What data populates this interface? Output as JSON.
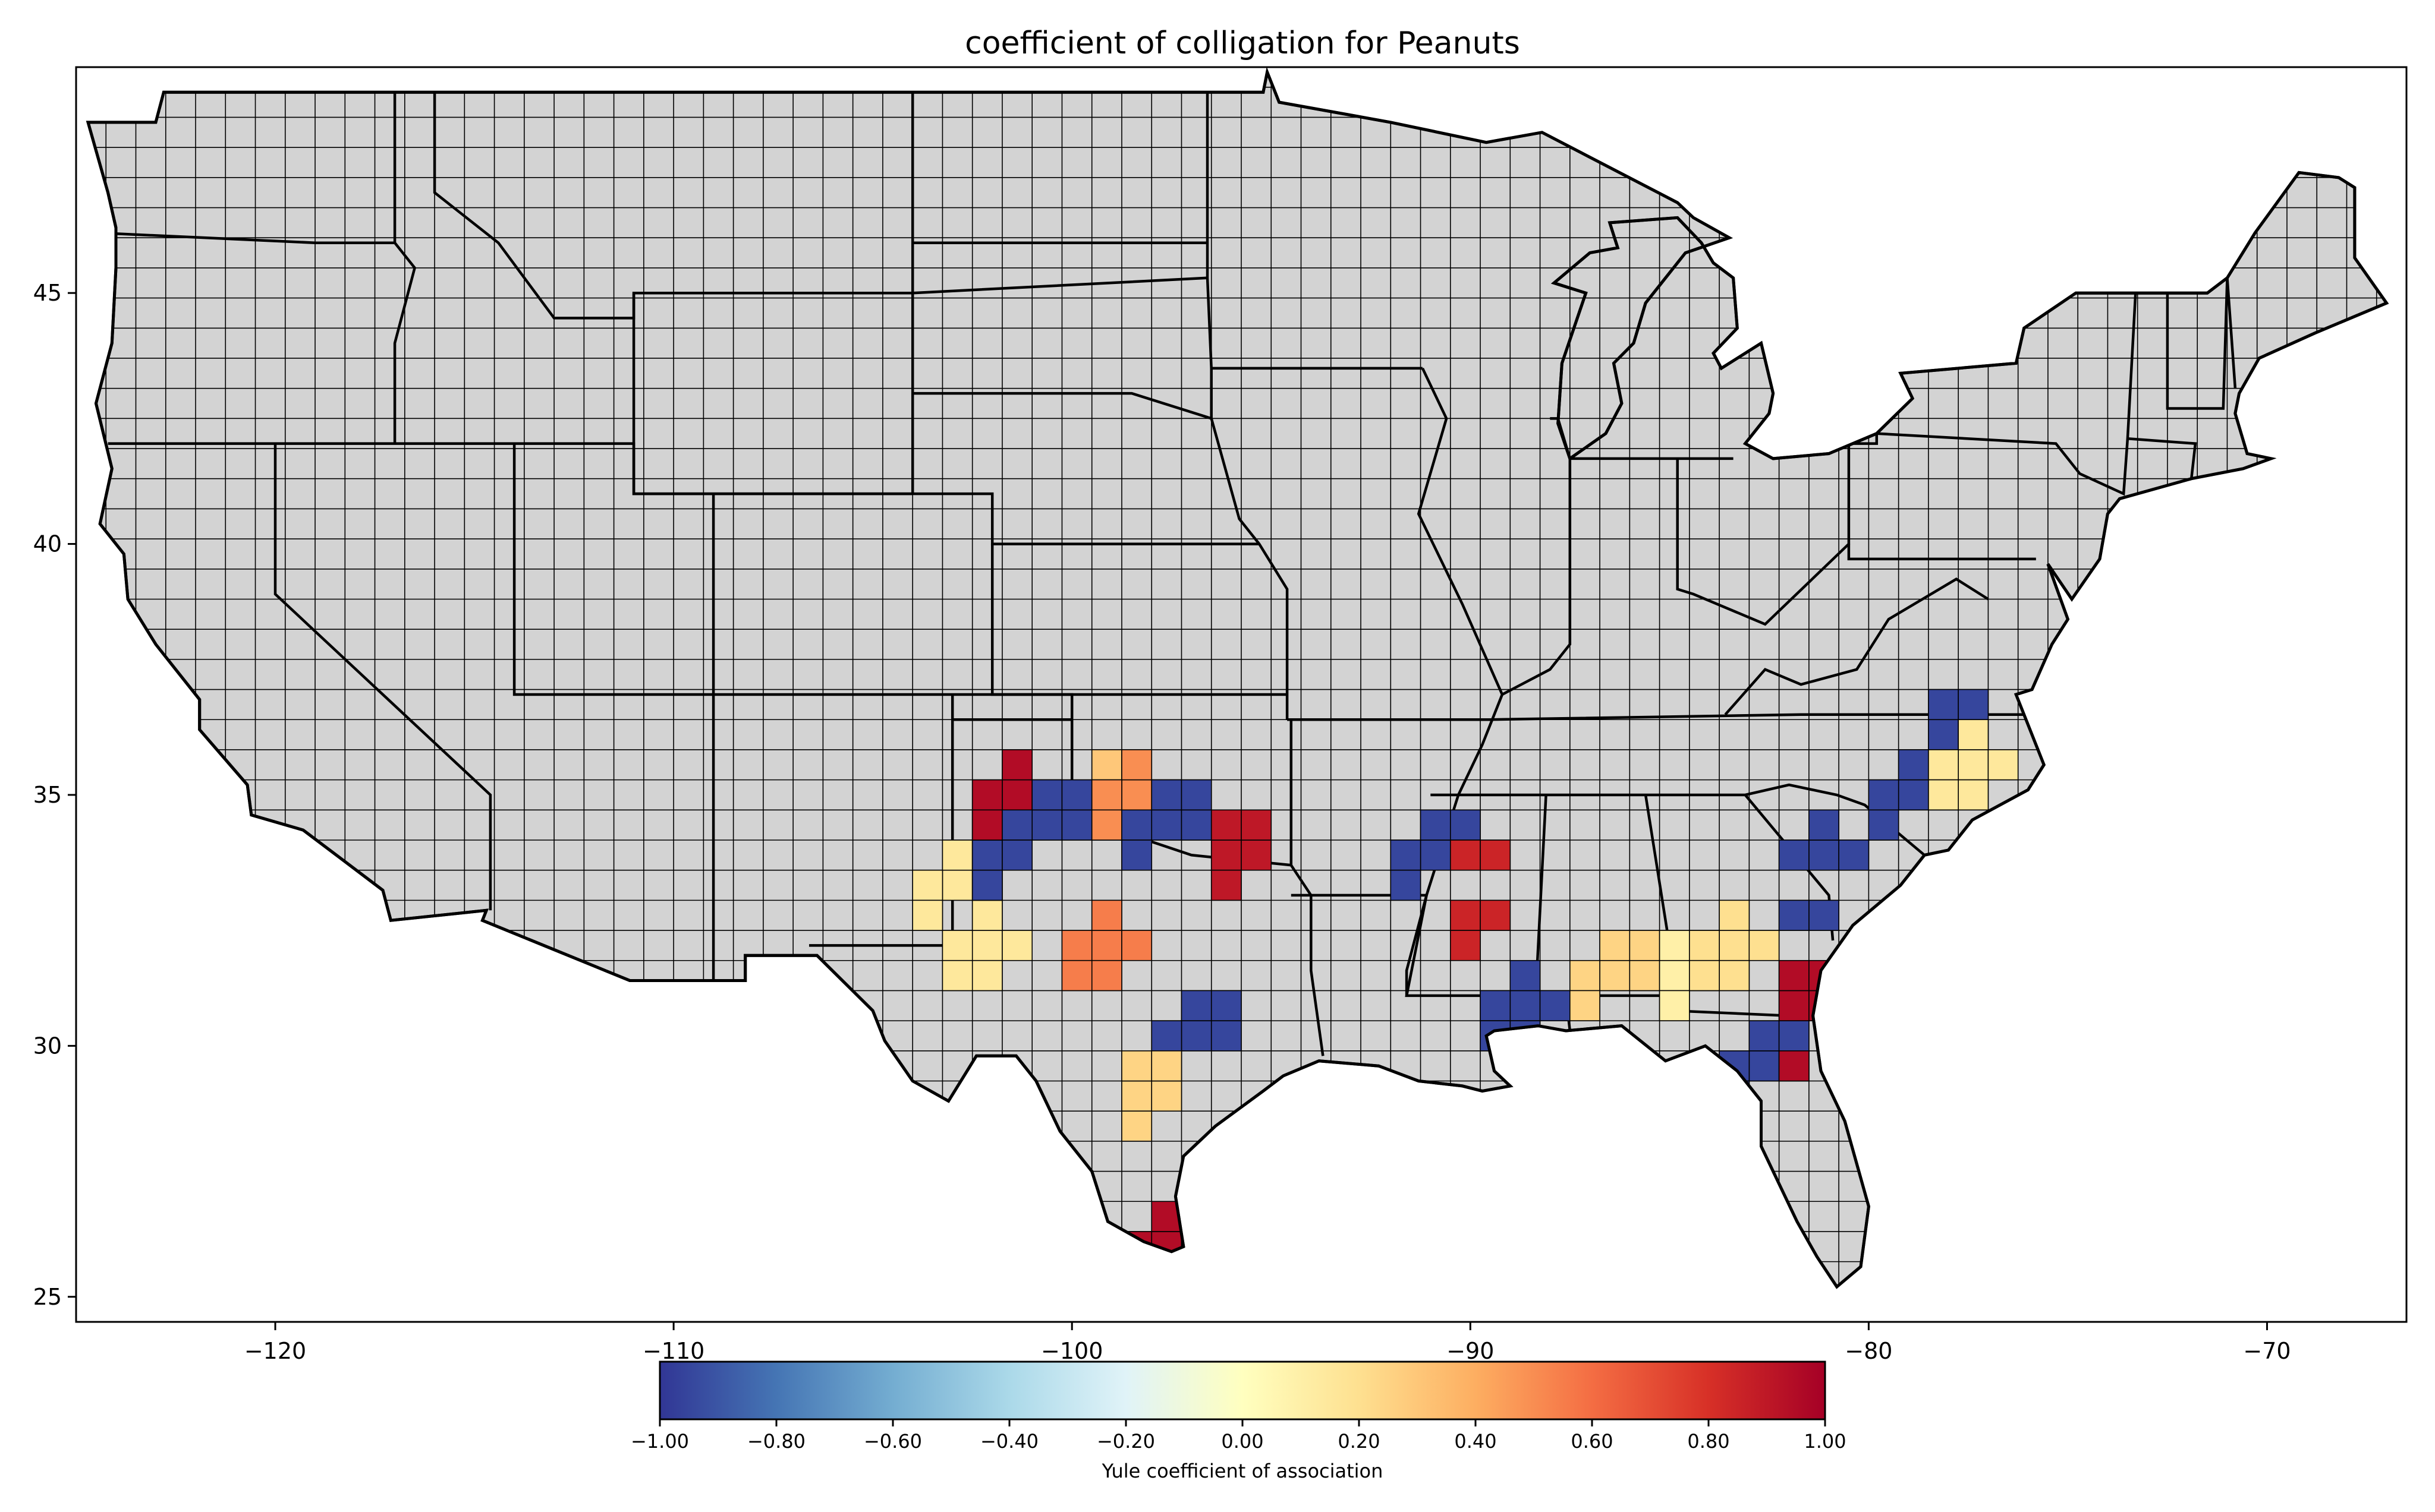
{
  "title": "coefficient of colligation for Peanuts",
  "map": {
    "lon_range": [
      -125,
      -66.5
    ],
    "lat_range": [
      24.5,
      49.5
    ],
    "x_ticks": [
      -120,
      -110,
      -100,
      -90,
      -80,
      -70
    ],
    "y_ticks": [
      25,
      30,
      35,
      40,
      45
    ],
    "land_color": "#d3d3d3",
    "ocean_color": "#ffffff",
    "border_color": "#000000"
  },
  "colorbar": {
    "label": "Yule coefficient of association",
    "range": [
      -1,
      1
    ],
    "ticks": [
      "−1.00",
      "−0.80",
      "−0.60",
      "−0.40",
      "−0.20",
      "0.00",
      "0.20",
      "0.40",
      "0.60",
      "0.80",
      "1.00"
    ],
    "colormap": [
      "#313695",
      "#4575b4",
      "#74add1",
      "#abd9e9",
      "#e0f3f8",
      "#ffffbf",
      "#fee090",
      "#fdae61",
      "#f46d43",
      "#d73027",
      "#a50026"
    ]
  },
  "regions": [
    {
      "lon": -102.5,
      "lat": 32.2,
      "value": 0.15
    },
    {
      "lon": -103.2,
      "lat": 33.3,
      "value": 0.15
    },
    {
      "lon": -101.8,
      "lat": 33.8,
      "value": -0.95
    },
    {
      "lon": -101.2,
      "lat": 34.9,
      "value": 0.95
    },
    {
      "lon": -100.4,
      "lat": 34.2,
      "value": -0.95
    },
    {
      "lon": -99.5,
      "lat": 35.2,
      "value": 0.3
    },
    {
      "lon": -98.4,
      "lat": 35.0,
      "value": 0.5
    },
    {
      "lon": -97.3,
      "lat": 34.4,
      "value": -0.95
    },
    {
      "lon": -96.2,
      "lat": 33.7,
      "value": 0.9
    },
    {
      "lon": -99.0,
      "lat": 31.8,
      "value": 0.55
    },
    {
      "lon": -96.8,
      "lat": 30.2,
      "value": -0.95
    },
    {
      "lon": -98.5,
      "lat": 28.9,
      "value": 0.25
    },
    {
      "lon": -97.8,
      "lat": 26.2,
      "value": 0.95
    },
    {
      "lon": -90.6,
      "lat": 33.7,
      "value": -0.95
    },
    {
      "lon": -90.0,
      "lat": 32.9,
      "value": 0.85
    },
    {
      "lon": -88.3,
      "lat": 30.9,
      "value": -0.95
    },
    {
      "lon": -86.3,
      "lat": 31.3,
      "value": 0.25
    },
    {
      "lon": -84.6,
      "lat": 31.6,
      "value": 0.1
    },
    {
      "lon": -83.5,
      "lat": 32.0,
      "value": 0.2
    },
    {
      "lon": -83.0,
      "lat": 29.7,
      "value": -0.95
    },
    {
      "lon": -82.1,
      "lat": 30.5,
      "value": 0.95
    },
    {
      "lon": -81.0,
      "lat": 33.5,
      "value": -0.95
    },
    {
      "lon": -79.0,
      "lat": 35.2,
      "value": -0.95
    },
    {
      "lon": -77.8,
      "lat": 36.4,
      "value": -0.95
    },
    {
      "lon": -77.3,
      "lat": 35.8,
      "value": 0.15
    }
  ]
}
